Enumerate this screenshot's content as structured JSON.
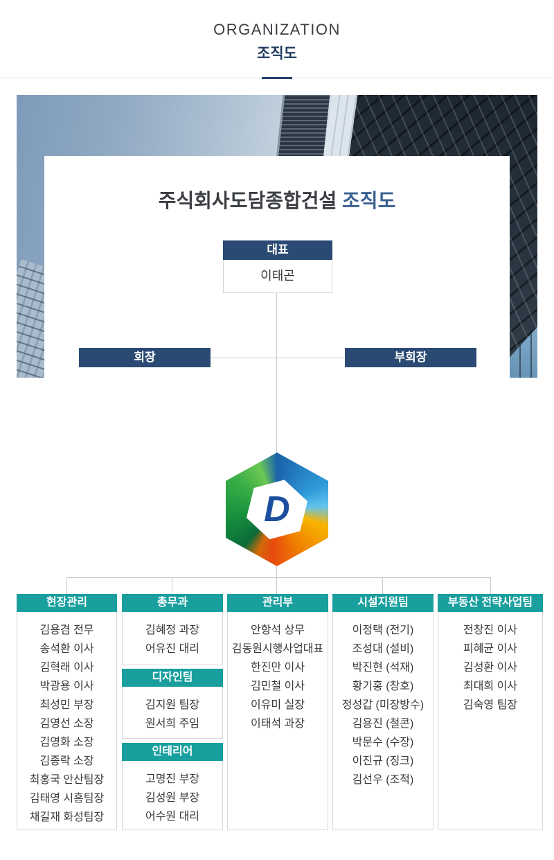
{
  "header": {
    "eyebrow": "ORGANIZATION",
    "title": "조직도"
  },
  "card": {
    "title_company": "주식회사도담종합건설",
    "title_suffix": "조직도"
  },
  "org": {
    "ceo_title": "대표",
    "ceo_name": "이태곤",
    "chairman": "회장",
    "vice_chairman": "부회장",
    "logo_letter": "D"
  },
  "departments": [
    {
      "name": "현장관리",
      "members": [
        "김용겸 전무",
        "송석환 이사",
        "김혁래 이사",
        "박광용 이사",
        "최성민 부장",
        "김영선 소장",
        "김영화 소장",
        "김종락 소장",
        "최홍국 안산팀장",
        "김태영 시흥팀장",
        "채길재 화성팀장"
      ]
    },
    {
      "name": "총무과",
      "members": [
        "김혜정 과장",
        "어유진 대리"
      ]
    },
    {
      "name": "디자인팀",
      "members": [
        "김지원 팀장",
        "원서희 주임"
      ]
    },
    {
      "name": "인테리어",
      "members": [
        "고명진 부장",
        "김성원 부장",
        "어수원 대리"
      ]
    },
    {
      "name": "관리부",
      "members": [
        "안항석 상무",
        "김동원시행사업대표",
        "한진만 이사",
        "김민철 이사",
        "이유미 실장",
        "이태석 과장"
      ]
    },
    {
      "name": "시설지원팀",
      "members": [
        "이정택 (전기)",
        "조성대 (설비)",
        "박진현 (석재)",
        "황기홍 (창호)",
        "정성갑 (미장방수)",
        "김용진 (철콘)",
        "박문수 (수장)",
        "이진규 (징크)",
        "김선우 (조적)"
      ]
    },
    {
      "name": "부동산 전략사업팀",
      "members": [
        "전창진 이사",
        "피혜균 이사",
        "김성환 이사",
        "최대희 이사",
        "김숙영 팀장"
      ]
    }
  ],
  "colors": {
    "accent_teal": "#199f9e",
    "navy": "#2a4a73",
    "title_blue": "#3a6191",
    "heading_navy": "#1f3a60",
    "divider_accent": "#24426c",
    "connector_gray": "#c9c9c9"
  }
}
